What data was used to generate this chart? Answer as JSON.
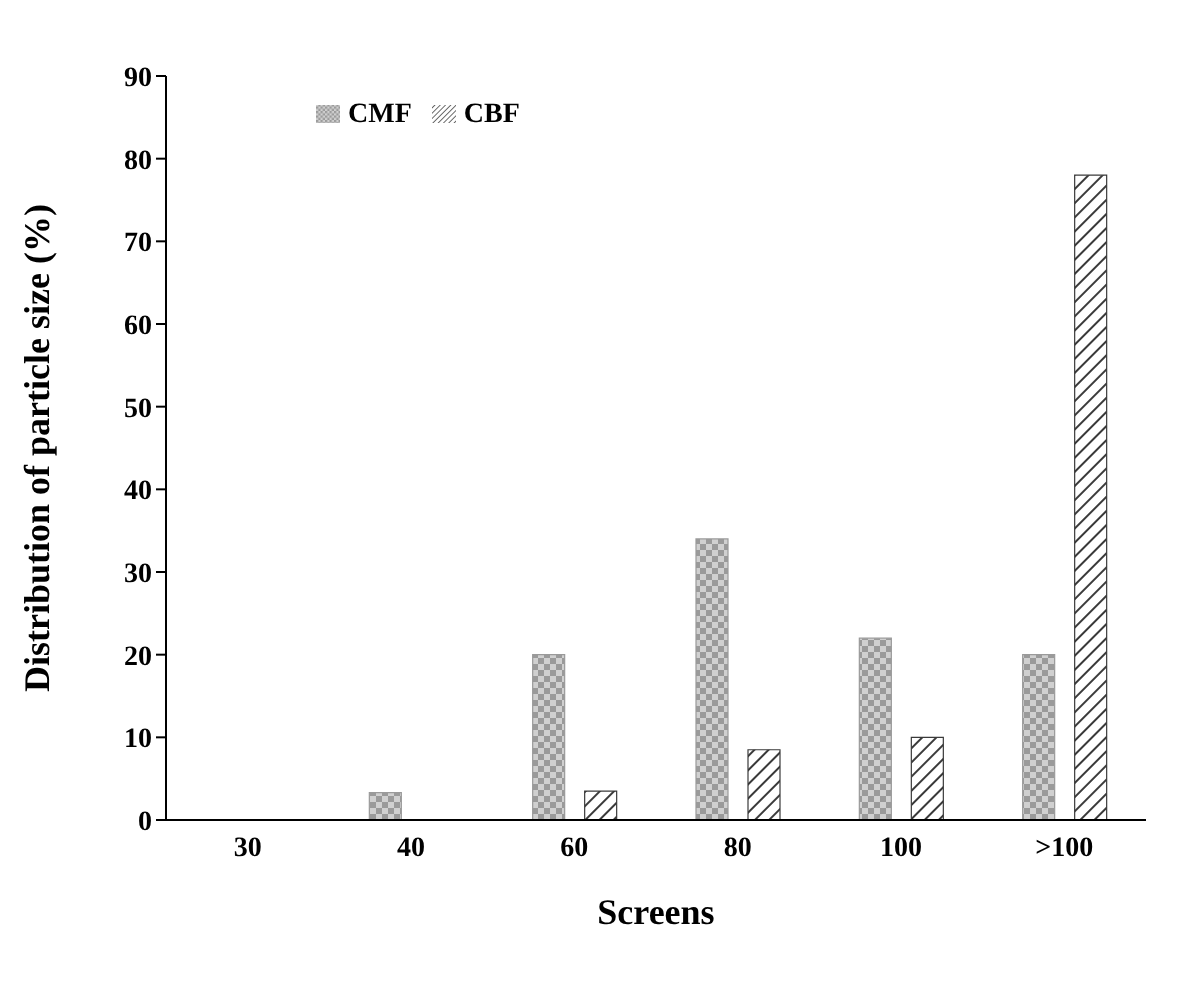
{
  "chart_data": {
    "type": "bar",
    "xlabel": "Screens",
    "ylabel": "Distribution of particle size  (%)",
    "categories": [
      "30",
      "40",
      "60",
      "80",
      "100",
      ">100"
    ],
    "series": [
      {
        "name": "CMF",
        "color": "#9a9a9a",
        "values": [
          0,
          3.3,
          20,
          34,
          22,
          20
        ]
      },
      {
        "name": "CBF",
        "color": "#3a3a3a",
        "values": [
          0,
          0,
          3.5,
          8.5,
          10,
          78
        ]
      }
    ],
    "ylim": [
      0,
      90
    ],
    "yticks": [
      0,
      10,
      20,
      30,
      40,
      50,
      60,
      70,
      80,
      90
    ],
    "grid": false,
    "legend": "top left"
  }
}
